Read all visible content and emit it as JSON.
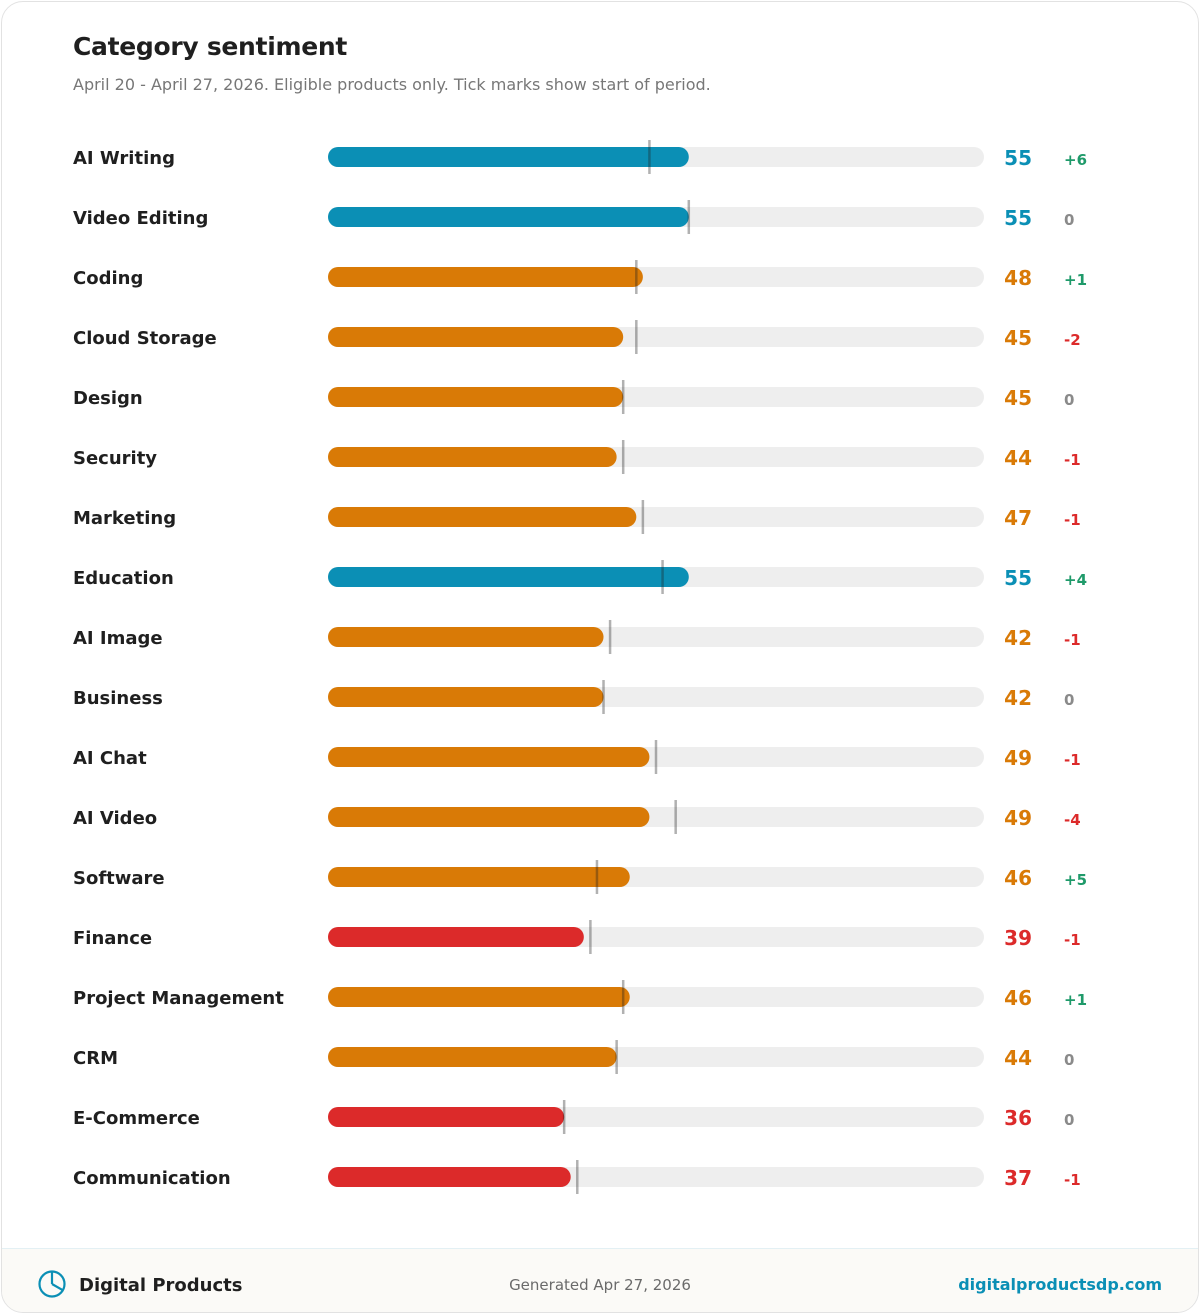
{
  "header": {
    "title": "Category sentiment",
    "subtitle": "April 20 - April 27, 2026. Eligible products only. Tick marks show start of period."
  },
  "footer": {
    "brand": "Digital Products",
    "generated": "Generated Apr 27, 2026",
    "site": "digitalproductsdp.com",
    "brand_icon": "pie-chart-icon"
  },
  "colors": {
    "high": "#0b8fb5",
    "medium": "#d97a06",
    "low": "#dc2a2a",
    "track": "#eeeeee",
    "delta_up": "#1f9a6a",
    "delta_down": "#dc2a2a",
    "delta_zero": "#8a8a8a"
  },
  "chart_data": {
    "type": "bar",
    "orientation": "horizontal",
    "xlim": [
      0,
      100
    ],
    "categories": [
      "AI Writing",
      "Video Editing",
      "Coding",
      "Cloud Storage",
      "Design",
      "Security",
      "Marketing",
      "Education",
      "AI Image",
      "Business",
      "AI Chat",
      "AI Video",
      "Software",
      "Finance",
      "Project Management",
      "CRM",
      "E-Commerce",
      "Communication"
    ],
    "values": [
      55,
      55,
      48,
      45,
      45,
      44,
      47,
      55,
      42,
      42,
      49,
      49,
      46,
      39,
      46,
      44,
      36,
      37
    ],
    "start_of_period": [
      49,
      55,
      47,
      47,
      45,
      45,
      48,
      51,
      43,
      42,
      50,
      53,
      41,
      40,
      45,
      44,
      36,
      38
    ],
    "deltas": [
      "+6",
      "0",
      "+1",
      "-2",
      "0",
      "-1",
      "-1",
      "+4",
      "-1",
      "0",
      "-1",
      "-4",
      "+5",
      "-1",
      "+1",
      "0",
      "0",
      "-1"
    ]
  }
}
